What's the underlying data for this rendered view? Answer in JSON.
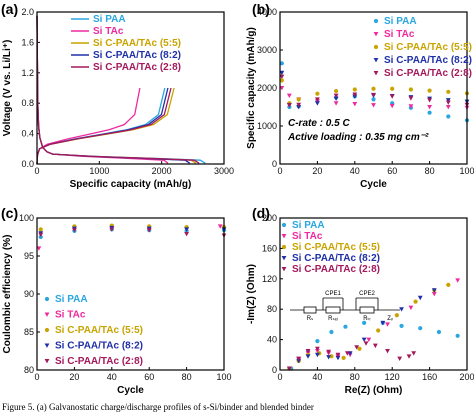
{
  "colors": {
    "si_paa": "#2aa6e0",
    "si_tac": "#ee2a9f",
    "cpaa_5_5": "#c9a400",
    "cpaa_8_2": "#1f30a8",
    "cpaa_2_8": "#a4195c"
  },
  "caption": "Figure 5. (a) Galvanostatic charge/discharge profiles of s-Si/binder and blended binder",
  "chart_data": [
    {
      "panel": "(a)",
      "type": "line",
      "xlabel": "Specific capacity (mAh/g)",
      "ylabel": "Voltage (V vs. Li/Li⁺)",
      "xlim": [
        0,
        3000
      ],
      "ylim": [
        0.0,
        2.0
      ],
      "xticks": [
        0,
        1000,
        2000,
        3000
      ],
      "yticks": [
        0.0,
        0.4,
        0.8,
        1.2,
        1.6,
        2.0
      ],
      "legend_position": "top-right",
      "series": [
        {
          "name": "Si PAA",
          "key": "si_paa",
          "discharge_cap": 2700,
          "charge_cap": 2050
        },
        {
          "name": "Si TAc",
          "key": "si_tac",
          "discharge_cap": 2100,
          "charge_cap": 1650
        },
        {
          "name": "Si C-PAA/TAc (5:5)",
          "key": "cpaa_5_5",
          "discharge_cap": 2550,
          "charge_cap": 2200
        },
        {
          "name": "Si C-PAA/TAc (8:2)",
          "key": "cpaa_8_2",
          "discharge_cap": 2450,
          "charge_cap": 2100
        },
        {
          "name": "Si C-PAA/TAc (2:8)",
          "key": "cpaa_2_8",
          "discharge_cap": 2600,
          "charge_cap": 2150
        }
      ]
    },
    {
      "panel": "(b)",
      "type": "scatter",
      "xlabel": "Cycle",
      "ylabel": "Specific capacity (mAh/g)",
      "xlim": [
        0,
        100
      ],
      "ylim": [
        0,
        4000
      ],
      "xticks": [
        0,
        20,
        40,
        60,
        80,
        100
      ],
      "yticks": [
        0,
        1000,
        2000,
        3000,
        4000
      ],
      "legend_position": "top-right",
      "annotations": [
        "C-rate : 0.5 C",
        "Active loading : 0.35 mg cm⁻²"
      ],
      "series": [
        {
          "name": "Si PAA",
          "key": "si_paa",
          "points": [
            [
              1,
              2650
            ],
            [
              5,
              1500
            ],
            [
              10,
              1520
            ],
            [
              20,
              1650
            ],
            [
              30,
              1750
            ],
            [
              40,
              1780
            ],
            [
              50,
              1700
            ],
            [
              60,
              1600
            ],
            [
              70,
              1480
            ],
            [
              80,
              1350
            ],
            [
              90,
              1250
            ],
            [
              100,
              1150
            ]
          ]
        },
        {
          "name": "Si TAc",
          "key": "si_tac",
          "points": [
            [
              1,
              2000
            ],
            [
              5,
              1800
            ],
            [
              10,
              1700
            ],
            [
              20,
              1650
            ],
            [
              30,
              1600
            ],
            [
              40,
              1580
            ],
            [
              50,
              1550
            ],
            [
              60,
              1530
            ],
            [
              70,
              1520
            ],
            [
              80,
              1500
            ],
            [
              90,
              1500
            ],
            [
              100,
              1480
            ]
          ]
        },
        {
          "name": "Si C-PAA/TAc (5:5)",
          "key": "cpaa_5_5",
          "points": [
            [
              1,
              2200
            ],
            [
              5,
              1600
            ],
            [
              10,
              1700
            ],
            [
              20,
              1850
            ],
            [
              30,
              1920
            ],
            [
              40,
              1960
            ],
            [
              50,
              1980
            ],
            [
              60,
              1980
            ],
            [
              70,
              1960
            ],
            [
              80,
              1930
            ],
            [
              90,
              1900
            ],
            [
              100,
              1860
            ]
          ]
        },
        {
          "name": "Si C-PAA/TAc (8:2)",
          "key": "cpaa_8_2",
          "points": [
            [
              1,
              2400
            ],
            [
              5,
              1550
            ],
            [
              10,
              1500
            ],
            [
              20,
              1600
            ],
            [
              30,
              1720
            ],
            [
              40,
              1780
            ],
            [
              50,
              1800
            ],
            [
              60,
              1790
            ],
            [
              70,
              1760
            ],
            [
              80,
              1720
            ],
            [
              90,
              1680
            ],
            [
              100,
              1640
            ]
          ]
        },
        {
          "name": "Si C-PAA/TAc (2:8)",
          "key": "cpaa_2_8",
          "points": [
            [
              1,
              2300
            ],
            [
              5,
              1550
            ],
            [
              10,
              1560
            ],
            [
              20,
              1700
            ],
            [
              30,
              1800
            ],
            [
              40,
              1830
            ],
            [
              50,
              1820
            ],
            [
              60,
              1780
            ],
            [
              70,
              1730
            ],
            [
              80,
              1680
            ],
            [
              90,
              1620
            ],
            [
              100,
              1560
            ]
          ]
        }
      ]
    },
    {
      "panel": "(c)",
      "type": "scatter",
      "xlabel": "Cycle",
      "ylabel": "Coulombic efficiency (%)",
      "xlim": [
        0,
        100
      ],
      "ylim": [
        80,
        100
      ],
      "xticks": [
        0,
        20,
        40,
        60,
        80,
        100
      ],
      "yticks": [
        80,
        85,
        90,
        95,
        100
      ],
      "legend_position": "bottom-left",
      "series": [
        {
          "name": "Si PAA",
          "key": "si_paa",
          "points": [
            [
              2,
              97.5
            ],
            [
              20,
              98.3
            ],
            [
              40,
              98.5
            ],
            [
              60,
              98.4
            ],
            [
              80,
              98.3
            ],
            [
              100,
              98.4
            ]
          ]
        },
        {
          "name": "Si TAc",
          "key": "si_tac",
          "points": [
            [
              1,
              96.0
            ],
            [
              20,
              98.6
            ],
            [
              40,
              98.7
            ],
            [
              60,
              98.6
            ],
            [
              80,
              98.5
            ],
            [
              98,
              98.9
            ]
          ]
        },
        {
          "name": "Si C-PAA/TAc (5:5)",
          "key": "cpaa_5_5",
          "points": [
            [
              2,
              98.5
            ],
            [
              20,
              98.9
            ],
            [
              40,
              99.0
            ],
            [
              60,
              98.9
            ],
            [
              80,
              98.8
            ],
            [
              100,
              98.8
            ]
          ]
        },
        {
          "name": "Si C-PAA/TAc (8:2)",
          "key": "cpaa_8_2",
          "points": [
            [
              2,
              98.0
            ],
            [
              20,
              98.6
            ],
            [
              40,
              98.7
            ],
            [
              60,
              98.6
            ],
            [
              80,
              98.5
            ],
            [
              100,
              98.5
            ]
          ]
        },
        {
          "name": "Si C-PAA/TAc (2:8)",
          "key": "cpaa_2_8",
          "points": [
            [
              2,
              97.8
            ],
            [
              20,
              98.4
            ],
            [
              40,
              98.5
            ],
            [
              60,
              98.4
            ],
            [
              80,
              97.9
            ],
            [
              100,
              97.7
            ]
          ]
        }
      ]
    },
    {
      "panel": "(d)",
      "type": "scatter",
      "xlabel": "Re(Z) (Ohm)",
      "ylabel": "-Im(Z) (Ohm)",
      "xlim": [
        0,
        200
      ],
      "ylim": [
        0,
        200
      ],
      "xticks": [
        0,
        40,
        80,
        120,
        160,
        200
      ],
      "yticks": [
        0,
        40,
        80,
        120,
        160,
        200
      ],
      "legend_position": "top-left",
      "circuit_labels": [
        "CPE1",
        "CPE2",
        "Rₛ",
        "Rₛₑᵢ",
        "Rₜᵣ",
        "Zᵥ"
      ],
      "series": [
        {
          "name": "Si PAA",
          "key": "si_paa",
          "points": [
            [
              12,
              2
            ],
            [
              20,
              12
            ],
            [
              30,
              25
            ],
            [
              40,
              38
            ],
            [
              55,
              50
            ],
            [
              70,
              57
            ],
            [
              90,
              62
            ],
            [
              110,
              62
            ],
            [
              130,
              58
            ],
            [
              150,
              55
            ],
            [
              170,
              50
            ],
            [
              190,
              45
            ]
          ]
        },
        {
          "name": "Si TAc",
          "key": "si_tac",
          "points": [
            [
              10,
              2
            ],
            [
              20,
              14
            ],
            [
              30,
              22
            ],
            [
              40,
              25
            ],
            [
              52,
              22
            ],
            [
              62,
              18
            ],
            [
              75,
              20
            ],
            [
              95,
              40
            ],
            [
              115,
              60
            ],
            [
              140,
              82
            ],
            [
              165,
              100
            ],
            [
              190,
              118
            ]
          ]
        },
        {
          "name": "Si C-PAA/TAc (5:5)",
          "key": "cpaa_5_5",
          "points": [
            [
              10,
              2
            ],
            [
              20,
              12
            ],
            [
              30,
              20
            ],
            [
              42,
              22
            ],
            [
              55,
              18
            ],
            [
              68,
              16
            ],
            [
              85,
              28
            ],
            [
              105,
              52
            ],
            [
              125,
              72
            ],
            [
              145,
              90
            ],
            [
              165,
              105
            ],
            [
              180,
              112
            ]
          ]
        },
        {
          "name": "Si C-PAA/TAc (8:2)",
          "key": "cpaa_8_2",
          "points": [
            [
              10,
              2
            ],
            [
              20,
              12
            ],
            [
              30,
              18
            ],
            [
              40,
              20
            ],
            [
              52,
              17
            ],
            [
              62,
              16
            ],
            [
              75,
              22
            ],
            [
              90,
              40
            ],
            [
              110,
              62
            ],
            [
              130,
              80
            ],
            [
              150,
              95
            ],
            [
              165,
              105
            ]
          ]
        },
        {
          "name": "Si C-PAA/TAc (2:8)",
          "key": "cpaa_2_8",
          "points": [
            [
              10,
              2
            ],
            [
              20,
              15
            ],
            [
              30,
              25
            ],
            [
              40,
              28
            ],
            [
              52,
              24
            ],
            [
              62,
              20
            ],
            [
              72,
              22
            ],
            [
              82,
              30
            ],
            [
              92,
              35
            ],
            [
              102,
              32
            ],
            [
              115,
              25
            ],
            [
              128,
              15
            ],
            [
              138,
              18
            ],
            [
              143,
              22
            ]
          ]
        }
      ]
    }
  ]
}
